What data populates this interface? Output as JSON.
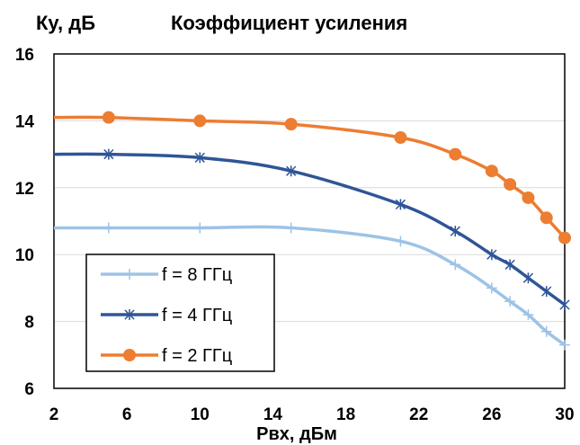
{
  "chart_data": {
    "type": "line",
    "title": "Коэффициент усиления",
    "ylabel": "Ку, дБ",
    "xlabel": "Рвх, дБм",
    "xlim": [
      2,
      30
    ],
    "ylim": [
      6,
      16
    ],
    "x_ticks": [
      2,
      6,
      10,
      14,
      18,
      22,
      26,
      30
    ],
    "y_ticks": [
      6,
      8,
      10,
      12,
      14,
      16
    ],
    "grid": "horizontal",
    "legend_position": "bottom-left",
    "series": [
      {
        "name": "f = 8 ГГц",
        "color": "#9dc3e6",
        "marker": "plus",
        "x": [
          2,
          5,
          10,
          15,
          21,
          24,
          26,
          27,
          28,
          29,
          30
        ],
        "y": [
          10.8,
          10.8,
          10.8,
          10.8,
          10.4,
          9.7,
          9.0,
          8.6,
          8.2,
          7.7,
          7.3
        ]
      },
      {
        "name": "f = 4 ГГц",
        "color": "#2f5597",
        "marker": "asterisk",
        "x": [
          2,
          5,
          10,
          15,
          21,
          24,
          26,
          27,
          28,
          29,
          30
        ],
        "y": [
          13.0,
          13.0,
          12.9,
          12.5,
          11.5,
          10.7,
          10.0,
          9.7,
          9.3,
          8.9,
          8.5
        ]
      },
      {
        "name": "f = 2 ГГц",
        "color": "#ed7d31",
        "marker": "circle",
        "x": [
          2,
          5,
          10,
          15,
          21,
          24,
          26,
          27,
          28,
          29,
          30
        ],
        "y": [
          14.1,
          14.1,
          14.0,
          13.9,
          13.5,
          13.0,
          12.5,
          12.1,
          11.7,
          11.1,
          10.5
        ]
      }
    ]
  }
}
